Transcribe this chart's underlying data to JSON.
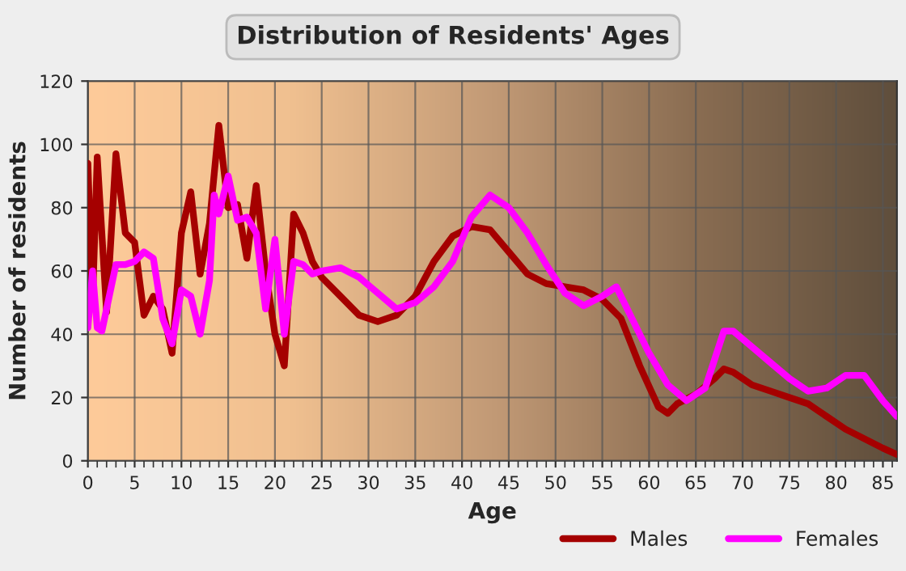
{
  "chart_data": {
    "type": "line",
    "title": "Distribution of Residents' Ages",
    "xlabel": "Age",
    "ylabel": "Number of residents",
    "xlim": [
      0,
      86.5
    ],
    "xticks": [
      0,
      5,
      10,
      15,
      20,
      25,
      30,
      35,
      40,
      45,
      50,
      55,
      60,
      65,
      70,
      75,
      80,
      85
    ],
    "ylim": [
      0,
      120
    ],
    "yticks": [
      0,
      20,
      40,
      60,
      80,
      100,
      120
    ],
    "grid": true,
    "legend": "bottom right",
    "marker": "none",
    "line_style": "solid",
    "series": [
      {
        "name": "Males",
        "color": "#a50000",
        "x": [
          0,
          0.5,
          1,
          2,
          3,
          4,
          5,
          6,
          7,
          8,
          9,
          10,
          11,
          12,
          13,
          14,
          15,
          16,
          17,
          18,
          19,
          20,
          21,
          22,
          23,
          24,
          25,
          27,
          29,
          31,
          33,
          35,
          37,
          39,
          41,
          43,
          45,
          47,
          49,
          51,
          53,
          55,
          57,
          59,
          61,
          62,
          63,
          65,
          67,
          68,
          69,
          71,
          73,
          75,
          77,
          79,
          81,
          83,
          85,
          86.5
        ],
        "values": [
          94,
          50,
          96,
          47,
          97,
          72,
          69,
          46,
          52,
          48,
          34,
          72,
          85,
          59,
          75,
          106,
          80,
          81,
          64,
          87,
          60,
          40,
          30,
          78,
          72,
          63,
          58,
          52,
          46,
          44,
          46,
          52,
          63,
          71,
          74,
          73,
          66,
          59,
          56,
          55,
          54,
          51,
          45,
          30,
          17,
          15,
          18,
          21,
          26,
          29,
          28,
          24,
          22,
          20,
          18,
          14,
          10,
          7,
          4,
          2
        ]
      },
      {
        "name": "Females",
        "color": "#ff00ff",
        "x": [
          0,
          0.5,
          1,
          1.5,
          2,
          3,
          4,
          5,
          6,
          7,
          8,
          9,
          10,
          11,
          12,
          13,
          13.5,
          14,
          15,
          16,
          17,
          18,
          19,
          20,
          21,
          22,
          23,
          24,
          25,
          27,
          29,
          31,
          33,
          35,
          37,
          39,
          41,
          43,
          45,
          47,
          49,
          51,
          53,
          55,
          56.5,
          58,
          60,
          62,
          64,
          66,
          68,
          69,
          71,
          73,
          75,
          77,
          79,
          81,
          83,
          85,
          86.5
        ],
        "values": [
          42,
          60,
          42,
          41,
          48,
          62,
          62,
          63,
          66,
          64,
          45,
          37,
          54,
          52,
          40,
          57,
          84,
          78,
          90,
          76,
          77,
          72,
          48,
          70,
          40,
          63,
          62,
          59,
          60,
          61,
          58,
          53,
          48,
          50,
          55,
          63,
          77,
          84,
          80,
          72,
          62,
          53,
          49,
          52,
          55,
          46,
          34,
          24,
          19,
          23,
          41,
          41,
          36,
          31,
          26,
          22,
          23,
          27,
          27,
          19,
          14
        ]
      }
    ]
  }
}
